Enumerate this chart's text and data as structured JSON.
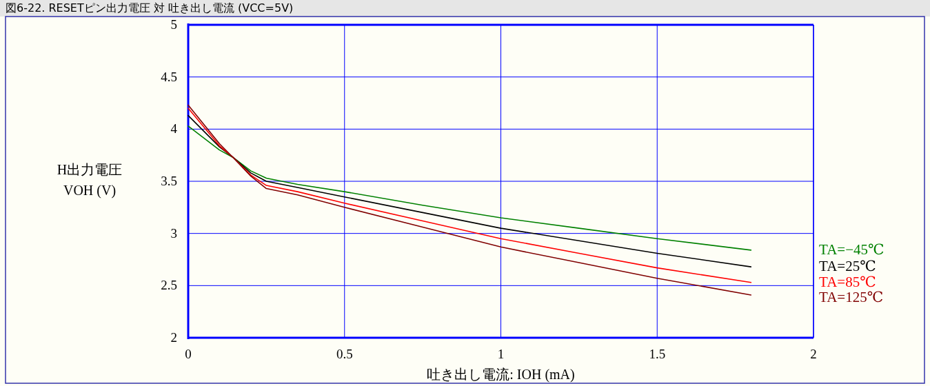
{
  "chart_data": {
    "type": "line",
    "title": "図6-22. RESETピン出力電圧 対 吐き出し電流 (VCC=5V)",
    "xlabel": "吐き出し電流: IOH (mA)",
    "ylabel": "H出力電圧\nVOH (V)",
    "x": [
      0,
      0.1,
      0.143,
      0.2,
      0.25,
      0.35,
      0.5,
      0.75,
      1,
      1.25,
      1.5,
      1.8
    ],
    "series": [
      {
        "name": "TA=−45℃",
        "color": "#008000",
        "values": [
          4.03,
          3.8,
          3.73,
          3.6,
          3.53,
          3.47,
          3.4,
          3.27,
          3.15,
          3.05,
          2.95,
          2.84
        ]
      },
      {
        "name": "TA=25℃",
        "color": "#000000",
        "values": [
          4.13,
          3.83,
          3.73,
          3.58,
          3.5,
          3.44,
          3.35,
          3.2,
          3.05,
          2.93,
          2.81,
          2.68
        ]
      },
      {
        "name": "TA=85℃",
        "color": "#ff0000",
        "values": [
          4.2,
          3.84,
          3.73,
          3.56,
          3.46,
          3.4,
          3.29,
          3.12,
          2.95,
          2.81,
          2.67,
          2.53
        ]
      },
      {
        "name": "TA=125℃",
        "color": "#800000",
        "values": [
          4.23,
          3.86,
          3.73,
          3.55,
          3.43,
          3.37,
          3.25,
          3.06,
          2.87,
          2.72,
          2.57,
          2.41
        ]
      }
    ],
    "xlim": [
      0,
      2
    ],
    "xticks": [
      0,
      0.5,
      1,
      1.5,
      2
    ],
    "ylim": [
      2,
      5
    ],
    "yticks": [
      2,
      2.5,
      3,
      3.5,
      4,
      4.5,
      5
    ],
    "grid": true,
    "legend": "right",
    "marker": "none",
    "line_style": "solid"
  }
}
